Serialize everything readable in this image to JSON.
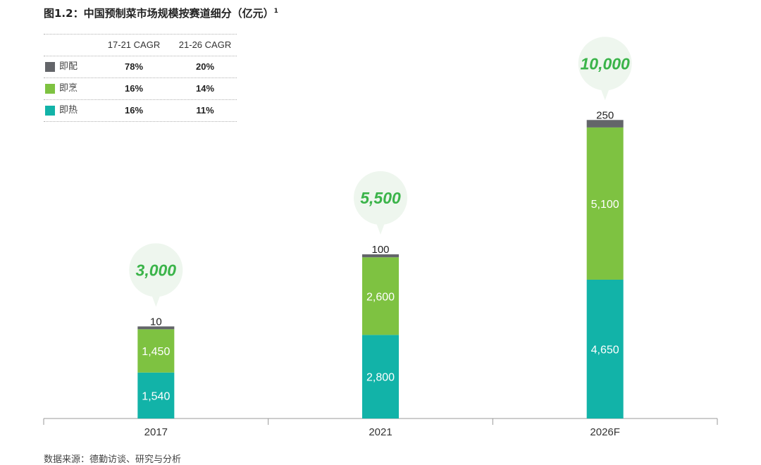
{
  "title": "图1.2：中国预制菜市场规模按赛道细分（亿元）",
  "title_sup": "1",
  "legend": {
    "headers": [
      "17-21 CAGR",
      "21-26 CAGR"
    ],
    "rows": [
      {
        "name": "即配",
        "color": "#636569",
        "cagr1": "78%",
        "cagr2": "20%"
      },
      {
        "name": "即烹",
        "color": "#7ec241",
        "cagr1": "16%",
        "cagr2": "14%"
      },
      {
        "name": "即热",
        "color": "#12b3a8",
        "cagr1": "16%",
        "cagr2": "11%"
      }
    ]
  },
  "chart_data": {
    "type": "bar",
    "stacked": true,
    "title": "中国预制菜市场规模按赛道细分（亿元）",
    "categories": [
      "2017",
      "2021",
      "2026F"
    ],
    "series": [
      {
        "name": "即热",
        "color": "#12b3a8",
        "values": [
          1540,
          2800,
          4650
        ],
        "labels": [
          "1,540",
          "2,800",
          "4,650"
        ]
      },
      {
        "name": "即烹",
        "color": "#7ec241",
        "values": [
          1450,
          2600,
          5100
        ],
        "labels": [
          "1,450",
          "2,600",
          "5,100"
        ]
      },
      {
        "name": "即配",
        "color": "#636569",
        "values": [
          10,
          100,
          250
        ],
        "labels": [
          "10",
          "100",
          "250"
        ]
      }
    ],
    "totals": [
      "3,000",
      "5,500",
      "10,000"
    ],
    "total_color": "#3bb44a",
    "bubble_color": "#eef6ee"
  },
  "source": "数据来源：德勤访谈、研究与分析"
}
